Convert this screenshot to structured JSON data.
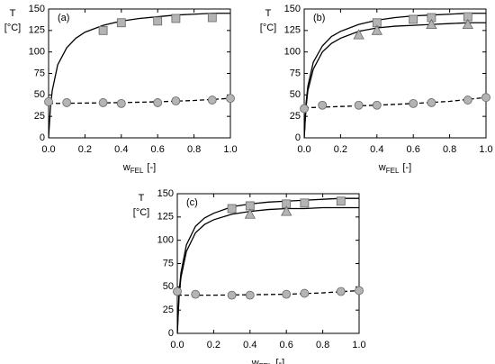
{
  "chart_data": [
    {
      "type": "line",
      "label": "(a)",
      "ylabel": "T",
      "yunit": "[°C]",
      "xlabel": "w",
      "xlabel_sub": "FEL",
      "xunit": "[-]",
      "xlim": [
        0,
        1
      ],
      "ylim": [
        0,
        150
      ],
      "xticks": [
        {
          "value": 0,
          "label": "0.0"
        },
        0.2,
        0.4,
        0.6,
        0.8,
        {
          "value": 1,
          "label": "1.0"
        }
      ],
      "yticks": [
        0,
        25,
        50,
        75,
        100,
        125,
        150
      ],
      "series": [
        {
          "marker": "none",
          "line": "solid",
          "color": "#000000",
          "x": [
            0,
            0.01,
            0.02,
            0.05,
            0.1,
            0.15,
            0.2,
            0.3,
            0.4,
            0.5,
            0.6,
            0.7,
            0.8,
            0.9,
            1.0
          ],
          "values": [
            0,
            35,
            55,
            85,
            105,
            116,
            123,
            131,
            136,
            139,
            141,
            143,
            144,
            145,
            145
          ]
        },
        {
          "marker": "none",
          "line": "dashed",
          "color": "#000000",
          "x": [
            0,
            0.2,
            0.4,
            0.6,
            0.8,
            1.0
          ],
          "values": [
            40,
            40.5,
            41,
            42,
            43.5,
            46
          ]
        },
        {
          "marker": "square",
          "line": "none",
          "color": "#b4b4b4",
          "x": [
            0.3,
            0.4,
            0.6,
            0.7,
            0.9
          ],
          "values": [
            125,
            134,
            136,
            139,
            140
          ]
        },
        {
          "marker": "circle",
          "line": "none",
          "color": "#b4b4b4",
          "x": [
            0,
            0.1,
            0.3,
            0.4,
            0.6,
            0.7,
            0.9,
            1.0
          ],
          "values": [
            42,
            41,
            41,
            40,
            41,
            43,
            44,
            46
          ]
        }
      ]
    },
    {
      "type": "line",
      "label": "(b)",
      "ylabel": "T",
      "yunit": "[°C]",
      "xlabel": "w",
      "xlabel_sub": "FEL",
      "xunit": "[-]",
      "xlim": [
        0,
        1
      ],
      "ylim": [
        0,
        150
      ],
      "xticks": [
        {
          "value": 0,
          "label": "0.0"
        },
        0.2,
        0.4,
        0.6,
        0.8,
        {
          "value": 1,
          "label": "1.0"
        }
      ],
      "yticks": [
        0,
        25,
        50,
        75,
        100,
        125,
        150
      ],
      "series": [
        {
          "marker": "none",
          "line": "solid",
          "color": "#000000",
          "x": [
            0,
            0.01,
            0.02,
            0.05,
            0.1,
            0.15,
            0.2,
            0.3,
            0.4,
            0.5,
            0.6,
            0.7,
            0.8,
            0.9,
            1.0
          ],
          "values": [
            0,
            40,
            60,
            88,
            107,
            118,
            124,
            132,
            137,
            140,
            142,
            143,
            144,
            145,
            145
          ]
        },
        {
          "marker": "none",
          "line": "solid",
          "color": "#000000",
          "x": [
            0,
            0.01,
            0.02,
            0.05,
            0.1,
            0.15,
            0.2,
            0.3,
            0.4,
            0.5,
            0.6,
            0.7,
            0.8,
            0.9,
            1.0
          ],
          "values": [
            0,
            35,
            55,
            80,
            100,
            110,
            116,
            124,
            128,
            130,
            131,
            132,
            133,
            134,
            134
          ]
        },
        {
          "marker": "none",
          "line": "dashed",
          "color": "#000000",
          "x": [
            0,
            0.2,
            0.4,
            0.6,
            0.8,
            1.0
          ],
          "values": [
            35,
            36.5,
            38,
            40,
            42.5,
            47
          ]
        },
        {
          "marker": "square",
          "line": "none",
          "color": "#b4b4b4",
          "x": [
            0.4,
            0.6,
            0.7,
            0.9
          ],
          "values": [
            134,
            138,
            140,
            141
          ]
        },
        {
          "marker": "triangle",
          "line": "none",
          "color": "#b4b4b4",
          "x": [
            0.3,
            0.4,
            0.7,
            0.9
          ],
          "values": [
            120,
            125,
            132,
            132
          ]
        },
        {
          "marker": "circle",
          "line": "none",
          "color": "#b4b4b4",
          "x": [
            0,
            0.1,
            0.3,
            0.4,
            0.6,
            0.7,
            0.9,
            1.0
          ],
          "values": [
            34,
            38,
            38,
            38,
            40,
            41,
            44,
            47
          ]
        }
      ]
    },
    {
      "type": "line",
      "label": "(c)",
      "ylabel": "T",
      "yunit": "[°C]",
      "xlabel": "w",
      "xlabel_sub": "FEL",
      "xunit": "[-]",
      "xlim": [
        0,
        1
      ],
      "ylim": [
        0,
        150
      ],
      "xticks": [
        {
          "value": 0,
          "label": "0.0"
        },
        0.2,
        0.4,
        0.6,
        0.8,
        {
          "value": 1,
          "label": "1.0"
        }
      ],
      "yticks": [
        0,
        25,
        50,
        75,
        100,
        125,
        150
      ],
      "series": [
        {
          "marker": "none",
          "line": "solid",
          "color": "#000000",
          "x": [
            0,
            0.01,
            0.02,
            0.05,
            0.1,
            0.15,
            0.2,
            0.3,
            0.4,
            0.5,
            0.6,
            0.7,
            0.8,
            0.9,
            1.0
          ],
          "values": [
            0,
            45,
            65,
            95,
            115,
            124,
            129,
            136,
            139,
            141,
            142,
            143,
            144,
            145,
            145
          ]
        },
        {
          "marker": "none",
          "line": "solid",
          "color": "#000000",
          "x": [
            0,
            0.01,
            0.02,
            0.05,
            0.1,
            0.15,
            0.2,
            0.3,
            0.4,
            0.5,
            0.6,
            0.7,
            0.8,
            0.9,
            1.0
          ],
          "values": [
            0,
            40,
            60,
            88,
            108,
            117,
            122,
            128,
            131,
            133,
            134,
            134,
            135,
            135,
            135
          ]
        },
        {
          "marker": "none",
          "line": "dashed",
          "color": "#000000",
          "x": [
            0,
            0.2,
            0.4,
            0.6,
            0.8,
            1.0
          ],
          "values": [
            41,
            41,
            41.5,
            42,
            43.5,
            46
          ]
        },
        {
          "marker": "square",
          "line": "none",
          "color": "#b4b4b4",
          "x": [
            0.3,
            0.4,
            0.6,
            0.7,
            0.9
          ],
          "values": [
            134,
            137,
            139,
            140,
            142
          ]
        },
        {
          "marker": "triangle",
          "line": "none",
          "color": "#b4b4b4",
          "x": [
            0.4,
            0.6
          ],
          "values": [
            128,
            131
          ]
        },
        {
          "marker": "circle",
          "line": "none",
          "color": "#b4b4b4",
          "x": [
            0,
            0.1,
            0.3,
            0.4,
            0.6,
            0.7,
            0.9,
            1.0
          ],
          "values": [
            45,
            42,
            41,
            41,
            42,
            43,
            45,
            46
          ]
        }
      ]
    }
  ]
}
